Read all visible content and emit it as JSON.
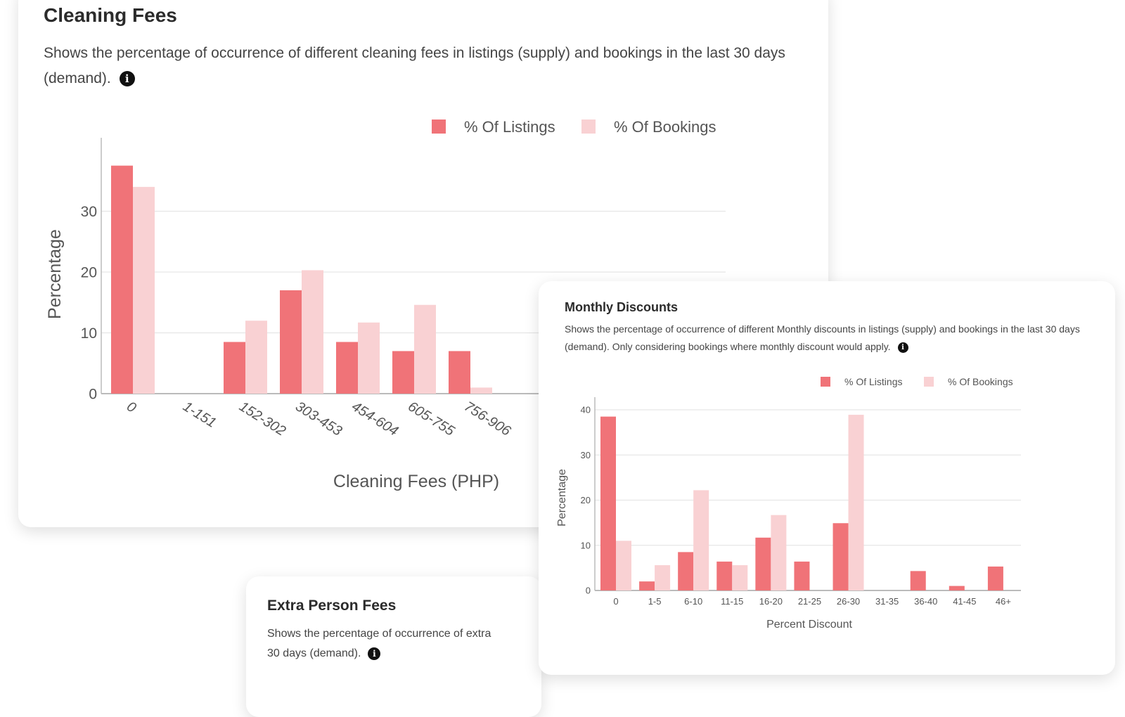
{
  "cleaning": {
    "title": "Cleaning Fees",
    "description": "Shows the percentage of occurrence of different cleaning fees in listings (supply) and bookings in the last 30 days (demand).",
    "info_icon": "info-icon"
  },
  "extra": {
    "title": "Extra Person Fees",
    "description_line1": "Shows the percentage of occurrence of extra",
    "description_line2": "30 days (demand).",
    "info_icon": "info-icon"
  },
  "monthly": {
    "title": "Monthly Discounts",
    "description": "Shows the percentage of occurrence of different Monthly discounts in listings (supply) and bookings in the last 30 days (demand). Only considering bookings where monthly discount would apply.",
    "info_icon": "info-icon"
  },
  "colors": {
    "listings": "#f07378",
    "bookings": "#f9d1d3",
    "grid": "#e6e6e6",
    "axis": "#bbbbbb",
    "tick_text": "#555555"
  },
  "chart_data": [
    {
      "type": "bar",
      "title": "Cleaning Fees",
      "xlabel": "Cleaning Fees (PHP)",
      "ylabel": "Percentage",
      "ylim": [
        0,
        40
      ],
      "yticks": [
        0,
        10,
        20,
        30
      ],
      "grid": true,
      "legend_position": "top-right",
      "categories": [
        "0",
        "1-151",
        "152-302",
        "303-453",
        "454-604",
        "605-755",
        "756-906"
      ],
      "series": [
        {
          "name": "% Of Listings",
          "values": [
            37.5,
            0,
            8.5,
            17,
            8.5,
            7,
            7
          ]
        },
        {
          "name": "% Of Bookings",
          "values": [
            34,
            0,
            12,
            20.3,
            11.7,
            14.6,
            1
          ]
        }
      ]
    },
    {
      "type": "bar",
      "title": "Monthly Discounts",
      "xlabel": "Percent Discount",
      "ylabel": "Percentage",
      "ylim": [
        0,
        40
      ],
      "yticks": [
        0,
        10,
        20,
        30,
        40
      ],
      "grid": true,
      "legend_position": "top-right",
      "categories": [
        "0",
        "1-5",
        "6-10",
        "11-15",
        "16-20",
        "21-25",
        "26-30",
        "31-35",
        "36-40",
        "41-45",
        "46+"
      ],
      "series": [
        {
          "name": "% Of Listings",
          "values": [
            38.5,
            2,
            8.5,
            6.4,
            11.7,
            6.4,
            14.9,
            0,
            4.3,
            1,
            5.3
          ]
        },
        {
          "name": "% Of Bookings",
          "values": [
            11,
            5.6,
            22.2,
            5.6,
            16.7,
            0,
            38.9,
            0,
            0,
            0,
            0
          ]
        }
      ]
    }
  ]
}
